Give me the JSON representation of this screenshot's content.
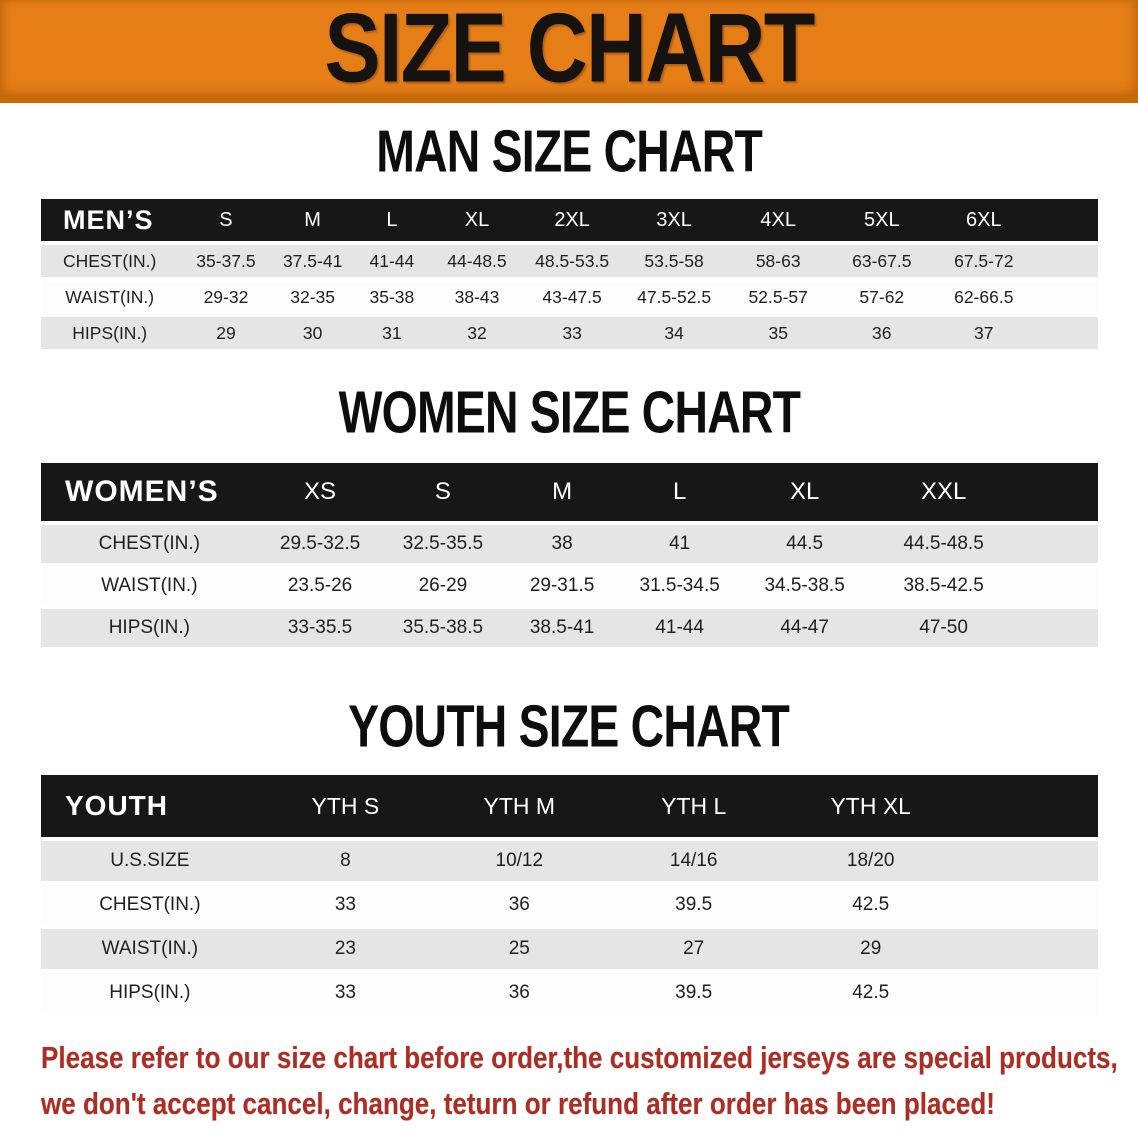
{
  "banner": {
    "title": "SIZE CHART"
  },
  "colors": {
    "banner_orange": "#e67e17",
    "banner_edge": "#c9690c",
    "header_black": "#171717",
    "row_gray": "#e5e5e5",
    "note_red": "#ab2e25"
  },
  "sections": [
    {
      "heading": "MAN SIZE CHART",
      "table": {
        "header": [
          "MEN’S",
          "S",
          "M",
          "L",
          "XL",
          "2XL",
          "3XL",
          "4XL",
          "5XL",
          "6XL"
        ],
        "rows": [
          {
            "label": "CHEST(IN.)",
            "values": [
              "35-37.5",
              "37.5-41",
              "41-44",
              "44-48.5",
              "48.5-53.5",
              "53.5-58",
              "58-63",
              "63-67.5",
              "67.5-72"
            ]
          },
          {
            "label": "WAIST(IN.)",
            "values": [
              "29-32",
              "32-35",
              "35-38",
              "38-43",
              "43-47.5",
              "47.5-52.5",
              "52.5-57",
              "57-62",
              "62-66.5"
            ]
          },
          {
            "label": "HIPS(IN.)",
            "values": [
              "29",
              "30",
              "31",
              "32",
              "33",
              "34",
              "35",
              "36",
              "37"
            ]
          }
        ]
      }
    },
    {
      "heading": "WOMEN SIZE CHART",
      "table": {
        "header": [
          "WOMEN’S",
          "XS",
          "S",
          "M",
          "L",
          "XL",
          "XXL"
        ],
        "rows": [
          {
            "label": "CHEST(IN.)",
            "values": [
              "29.5-32.5",
              "32.5-35.5",
              "38",
              "41",
              "44.5",
              "44.5-48.5"
            ]
          },
          {
            "label": "WAIST(IN.)",
            "values": [
              "23.5-26",
              "26-29",
              "29-31.5",
              "31.5-34.5",
              "34.5-38.5",
              "38.5-42.5"
            ]
          },
          {
            "label": "HIPS(IN.)",
            "values": [
              "33-35.5",
              "35.5-38.5",
              "38.5-41",
              "41-44",
              "44-47",
              "47-50"
            ]
          }
        ]
      }
    },
    {
      "heading": "YOUTH SIZE CHART",
      "table": {
        "header": [
          "YOUTH",
          "YTH S",
          "YTH M",
          "YTH L",
          "YTH XL"
        ],
        "rows": [
          {
            "label": "U.S.SIZE",
            "values": [
              "8",
              "10/12",
              "14/16",
              "18/20"
            ]
          },
          {
            "label": "CHEST(IN.)",
            "values": [
              "33",
              "36",
              "39.5",
              "42.5"
            ]
          },
          {
            "label": "WAIST(IN.)",
            "values": [
              "23",
              "25",
              "27",
              "29"
            ]
          },
          {
            "label": "HIPS(IN.)",
            "values": [
              "33",
              "36",
              "39.5",
              "42.5"
            ]
          }
        ]
      }
    }
  ],
  "note": {
    "lines": [
      "Please refer to our size chart before order,the customized jerseys are special products,",
      "we don't accept cancel, change, teturn or refund after order has been placed!"
    ]
  }
}
